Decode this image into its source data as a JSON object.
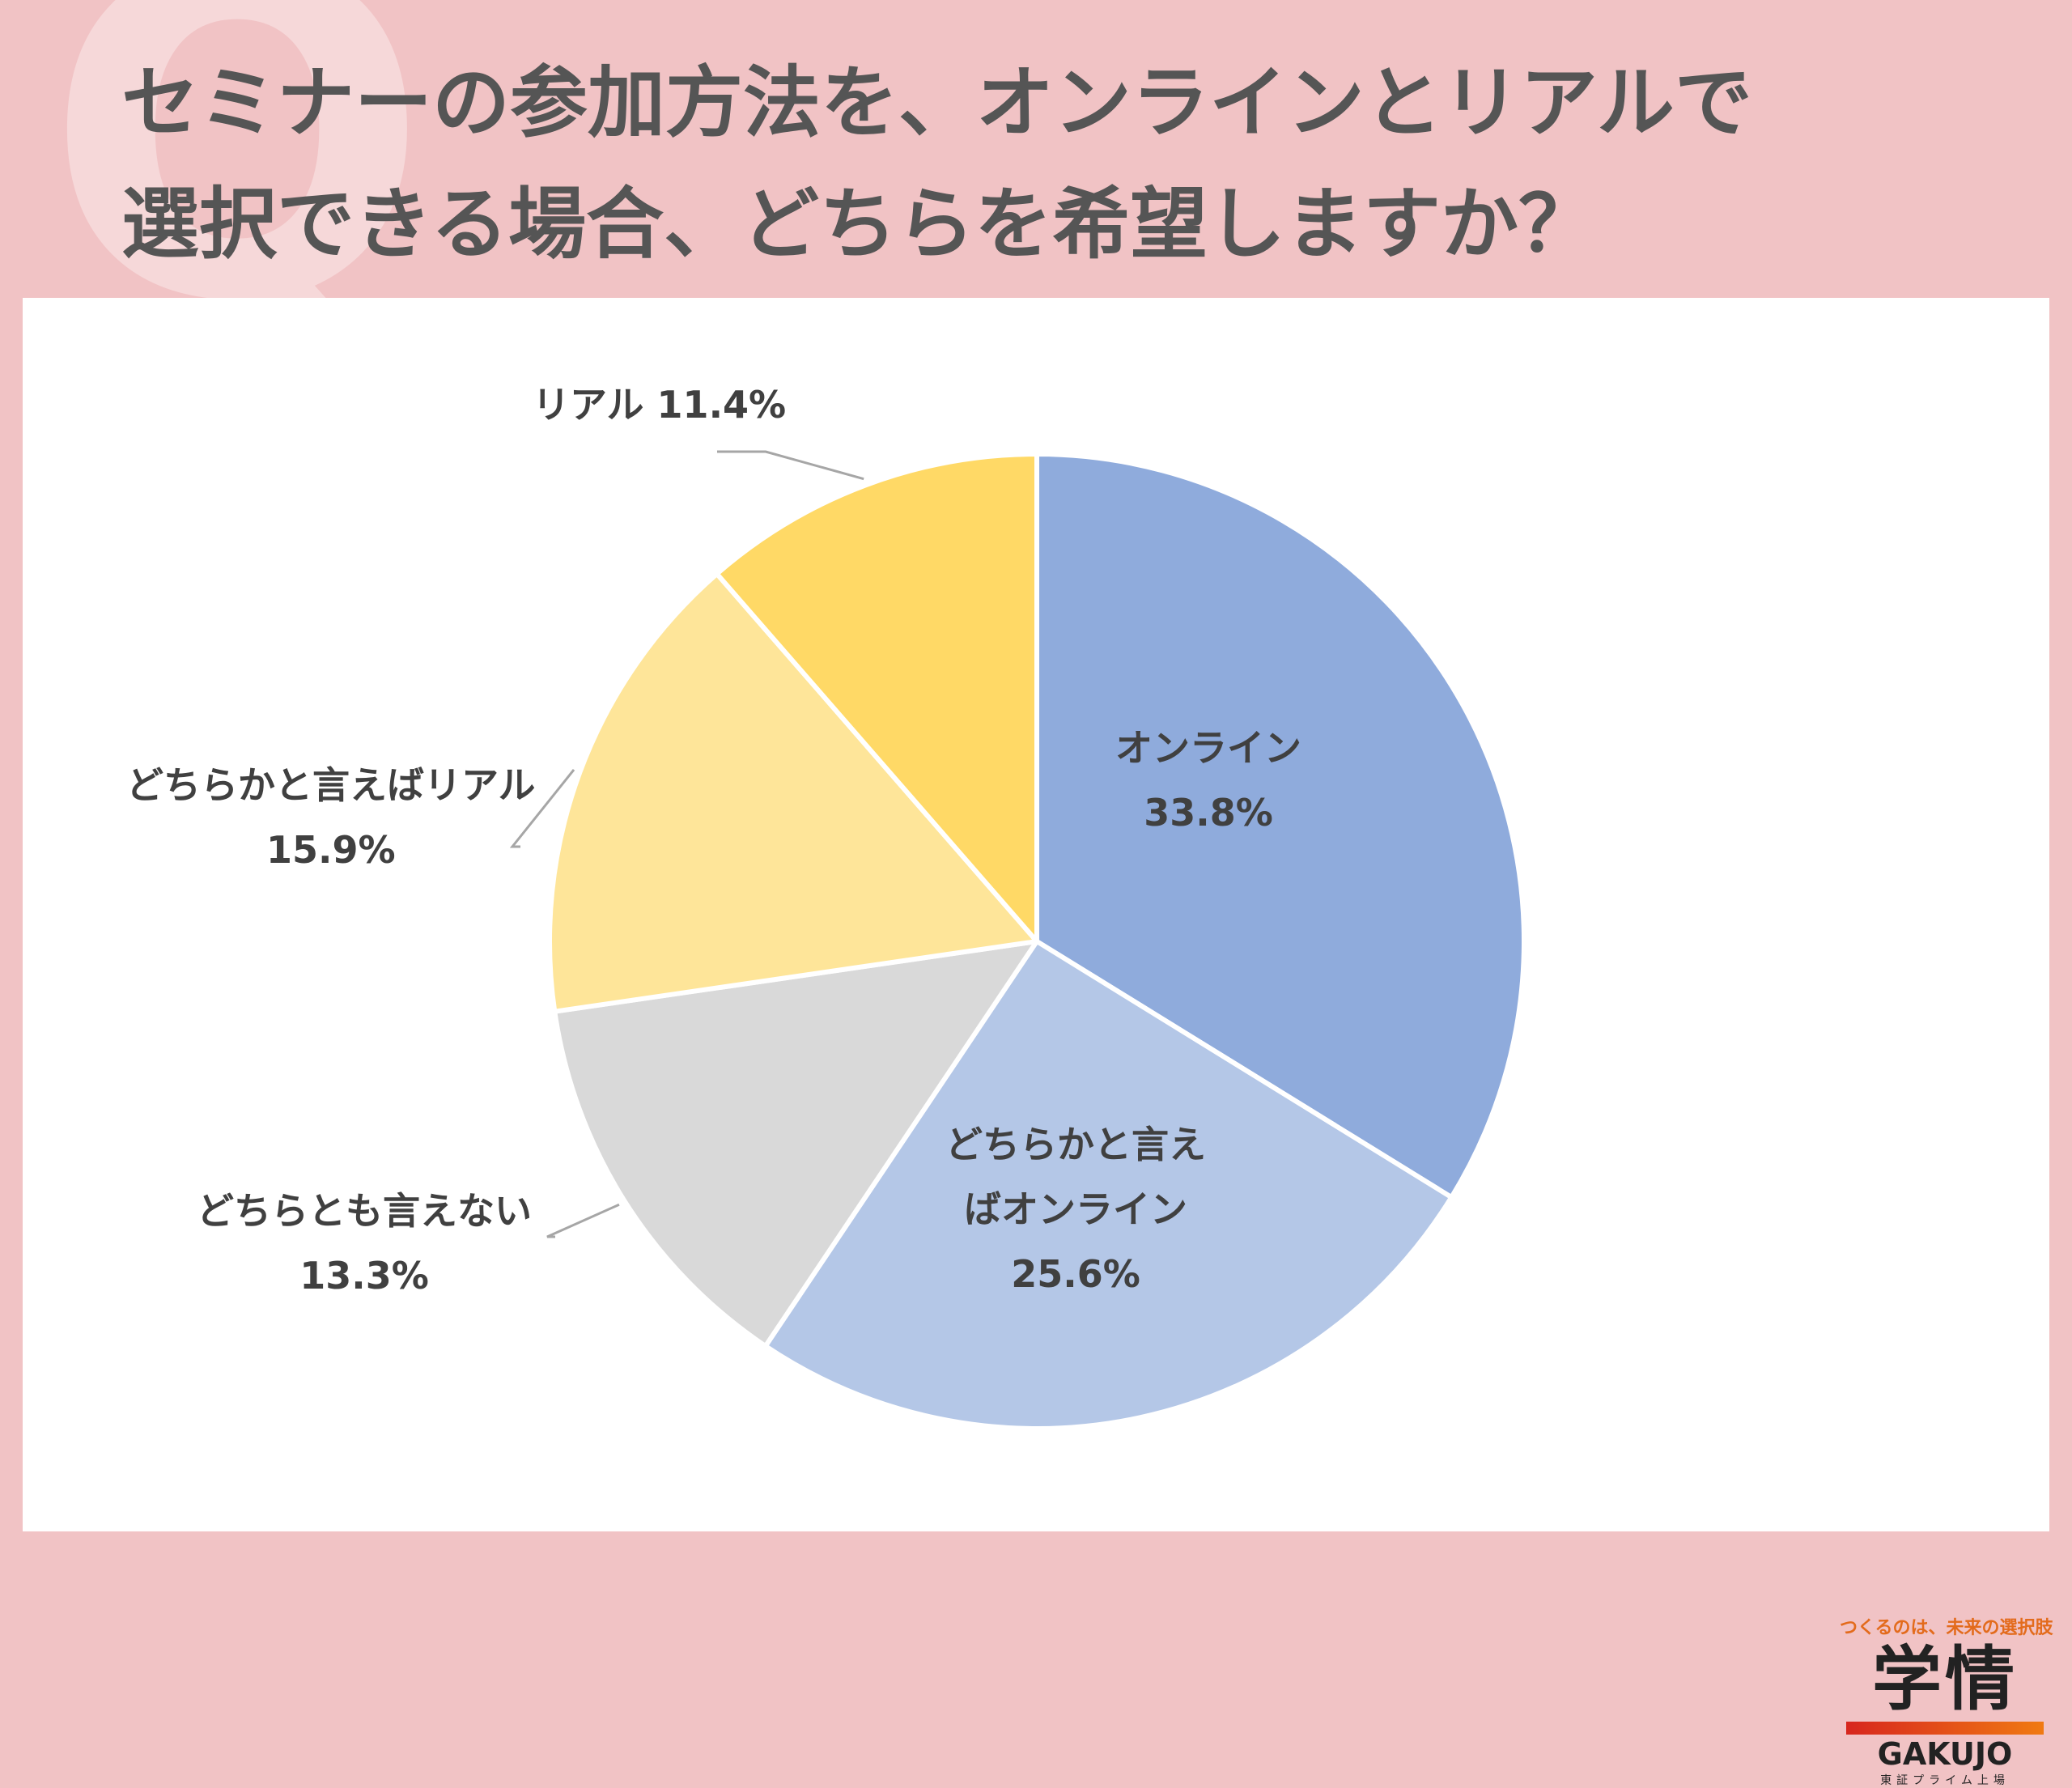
{
  "header": {
    "watermark": "Q",
    "title_line1": "セミナーの参加方法を、オンラインとリアルで",
    "title_line2": "選択できる場合、どちらを希望しますか？"
  },
  "chart_data": {
    "type": "pie",
    "start_angle_deg": 0,
    "direction": "clockwise",
    "slices": [
      {
        "name": "オンライン",
        "label_lines": [
          "オンライン",
          "33.8%"
        ],
        "value": 33.8,
        "color": "#8FABDC"
      },
      {
        "name": "どちらかと言えばオンライン",
        "label_lines": [
          "どちらかと言え",
          "ばオンライン",
          "25.6%"
        ],
        "value": 25.6,
        "color": "#B4C7E7"
      },
      {
        "name": "どちらとも言えない",
        "label_lines": [
          "どちらとも言えない",
          "13.3%"
        ],
        "value": 13.3,
        "color": "#D9D9D9"
      },
      {
        "name": "どちらかと言えばリアル",
        "label_lines": [
          "どちらかと言えばリアル",
          "15.9%"
        ],
        "value": 15.9,
        "color": "#FEE599"
      },
      {
        "name": "リアル",
        "label_lines": [
          "リアル 11.4%"
        ],
        "value": 11.4,
        "color": "#FFD966"
      }
    ]
  },
  "logo": {
    "tagline": "つくるのは、未来の選択肢",
    "mark": "学情",
    "brand": "GAKUJO",
    "sub": "東証プライム上場"
  }
}
